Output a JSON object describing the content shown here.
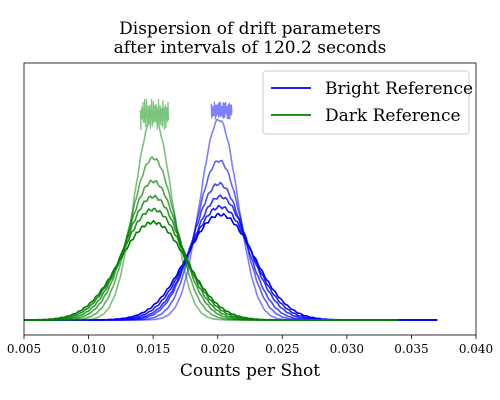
{
  "chart_data": {
    "type": "line",
    "title": [
      "Dispersion of drift parameters",
      "after intervals of 120.2 seconds"
    ],
    "xlabel": "Counts per Shot",
    "ylabel": "",
    "xlim": [
      0.005,
      0.04
    ],
    "x_ticks": [
      0.005,
      0.01,
      0.015,
      0.02,
      0.025,
      0.03,
      0.035,
      0.04
    ],
    "x_tick_labels": [
      "0.005",
      "0.010",
      "0.015",
      "0.020",
      "0.025",
      "0.030",
      "0.035",
      "0.040"
    ],
    "y_ticks_visible": false,
    "grid": false,
    "legend": {
      "placement": "top-right",
      "entries": [
        {
          "label": "Bright Reference",
          "color": "#0000ff"
        },
        {
          "label": "Dark Reference",
          "color": "#008000"
        }
      ]
    },
    "series": [
      {
        "group": "Bright Reference",
        "color": "#0000ff",
        "x_range": [
          0.005,
          0.037
        ],
        "curves": [
          {
            "center": 0.0201,
            "sigma": 0.00145,
            "peak": 0.78,
            "opacity": 0.5
          },
          {
            "center": 0.0201,
            "sigma": 0.00175,
            "peak": 0.62,
            "opacity": 0.62
          },
          {
            "center": 0.0201,
            "sigma": 0.002,
            "peak": 0.53,
            "opacity": 0.72
          },
          {
            "center": 0.0202,
            "sigma": 0.0022,
            "peak": 0.48,
            "opacity": 0.8
          },
          {
            "center": 0.0202,
            "sigma": 0.0024,
            "peak": 0.44,
            "opacity": 0.88
          },
          {
            "center": 0.0202,
            "sigma": 0.0026,
            "peak": 0.41,
            "opacity": 1.0
          }
        ]
      },
      {
        "group": "Dark Reference",
        "color": "#008000",
        "x_range": [
          0.005,
          0.034
        ],
        "curves": [
          {
            "center": 0.015,
            "sigma": 0.00145,
            "peak": 0.79,
            "opacity": 0.5
          },
          {
            "center": 0.015,
            "sigma": 0.00175,
            "peak": 0.63,
            "opacity": 0.62
          },
          {
            "center": 0.015,
            "sigma": 0.002,
            "peak": 0.54,
            "opacity": 0.72
          },
          {
            "center": 0.015,
            "sigma": 0.0022,
            "peak": 0.48,
            "opacity": 0.8
          },
          {
            "center": 0.015,
            "sigma": 0.0024,
            "peak": 0.43,
            "opacity": 0.88
          },
          {
            "center": 0.015,
            "sigma": 0.0026,
            "peak": 0.38,
            "opacity": 1.0
          }
        ]
      }
    ],
    "drift_traces": [
      {
        "group": "Dark Reference",
        "color": "#7cc47c",
        "x_range": [
          0.014,
          0.0162
        ],
        "y_range": [
          0.74,
          0.86
        ]
      },
      {
        "group": "Bright Reference",
        "color": "#7f7fff",
        "x_range": [
          0.0195,
          0.0211
        ],
        "y_range": [
          0.78,
          0.85
        ]
      }
    ]
  }
}
